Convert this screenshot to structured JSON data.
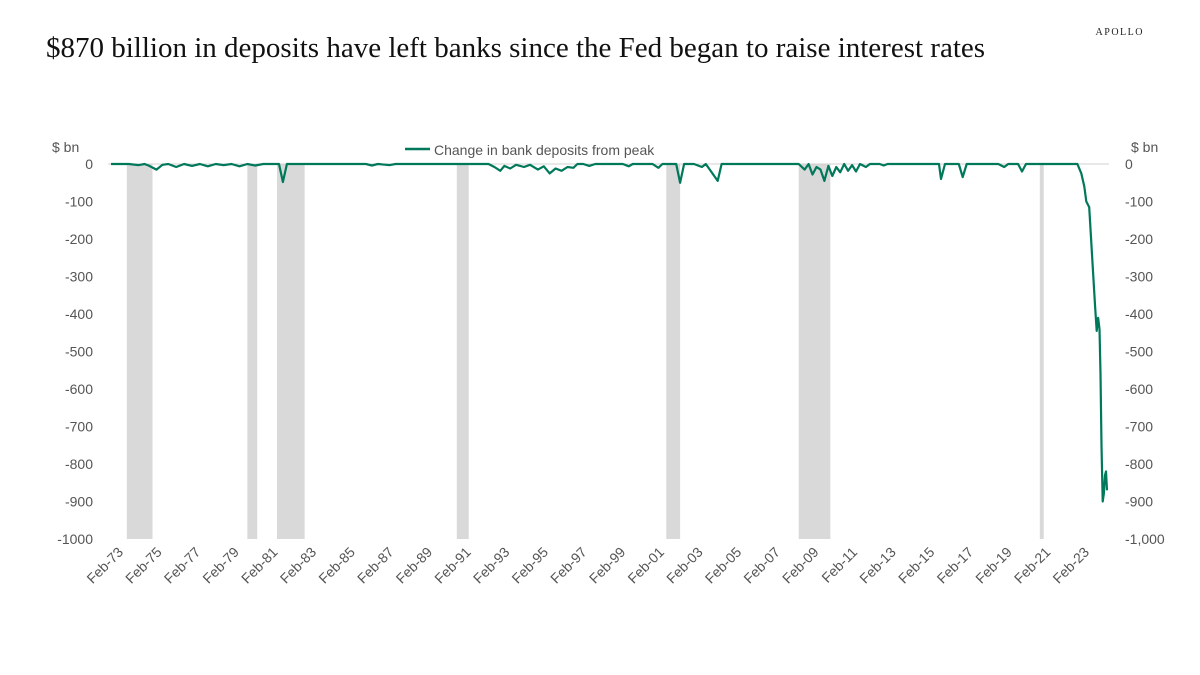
{
  "header": {
    "title": "$870 billion in deposits have left banks since the Fed began to raise interest rates",
    "brand": "APOLLO"
  },
  "chart_data": {
    "type": "line",
    "title": "$870 billion in deposits have left banks since the Fed began to raise interest rates",
    "ylabel_left": "$ bn",
    "ylabel_right": "$ bn",
    "legend_position": "top-center",
    "grid": false,
    "xlim": [
      1973.1,
      2023.5
    ],
    "ylim": [
      -1000,
      0
    ],
    "x_ticks": [
      "Feb-73",
      "Feb-75",
      "Feb-77",
      "Feb-79",
      "Feb-81",
      "Feb-83",
      "Feb-85",
      "Feb-87",
      "Feb-89",
      "Feb-91",
      "Feb-93",
      "Feb-95",
      "Feb-97",
      "Feb-99",
      "Feb-01",
      "Feb-03",
      "Feb-05",
      "Feb-07",
      "Feb-09",
      "Feb-11",
      "Feb-13",
      "Feb-15",
      "Feb-17",
      "Feb-19",
      "Feb-21",
      "Feb-23"
    ],
    "y_ticks_left": [
      "0",
      "-100",
      "-200",
      "-300",
      "-400",
      "-500",
      "-600",
      "-700",
      "-800",
      "-900",
      "-1000"
    ],
    "y_ticks_right": [
      "0",
      "-100",
      "-200",
      "-300",
      "-400",
      "-500",
      "-600",
      "-700",
      "-800",
      "-900",
      "-1,000"
    ],
    "y_tick_values": [
      0,
      -100,
      -200,
      -300,
      -400,
      -500,
      -600,
      -700,
      -800,
      -900,
      -1000
    ],
    "recession_shading": [
      [
        1973.9,
        1975.2
      ],
      [
        1980.0,
        1980.5
      ],
      [
        1981.5,
        1982.9
      ],
      [
        1990.6,
        1991.2
      ],
      [
        2001.2,
        2001.9
      ],
      [
        2007.9,
        2009.5
      ],
      [
        2020.1,
        2020.3
      ]
    ],
    "recession_color": "#d9d9d9",
    "series": [
      {
        "name": "Change in bank deposits from peak",
        "color": "#00785a",
        "points": [
          [
            1973.1,
            0
          ],
          [
            1974.0,
            0
          ],
          [
            1974.5,
            -3
          ],
          [
            1974.8,
            0
          ],
          [
            1975.0,
            -4
          ],
          [
            1975.4,
            -15
          ],
          [
            1975.7,
            -2
          ],
          [
            1976.0,
            0
          ],
          [
            1976.4,
            -8
          ],
          [
            1976.8,
            0
          ],
          [
            1977.2,
            -5
          ],
          [
            1977.6,
            0
          ],
          [
            1978.0,
            -6
          ],
          [
            1978.4,
            0
          ],
          [
            1978.8,
            -3
          ],
          [
            1979.2,
            0
          ],
          [
            1979.6,
            -6
          ],
          [
            1980.0,
            0
          ],
          [
            1980.4,
            -4
          ],
          [
            1980.8,
            0
          ],
          [
            1981.0,
            0
          ],
          [
            1981.6,
            0
          ],
          [
            1981.8,
            -48
          ],
          [
            1982.0,
            0
          ],
          [
            1982.5,
            0
          ],
          [
            1986.0,
            0
          ],
          [
            1986.3,
            -4
          ],
          [
            1986.6,
            0
          ],
          [
            1987.2,
            -3
          ],
          [
            1987.5,
            0
          ],
          [
            1991.5,
            0
          ],
          [
            1992.2,
            0
          ],
          [
            1992.5,
            -8
          ],
          [
            1992.8,
            -18
          ],
          [
            1993.0,
            -5
          ],
          [
            1993.3,
            -12
          ],
          [
            1993.6,
            -2
          ],
          [
            1994.0,
            -8
          ],
          [
            1994.3,
            -2
          ],
          [
            1994.7,
            -15
          ],
          [
            1995.0,
            -6
          ],
          [
            1995.3,
            -25
          ],
          [
            1995.6,
            -12
          ],
          [
            1995.9,
            -18
          ],
          [
            1996.2,
            -8
          ],
          [
            1996.5,
            -10
          ],
          [
            1996.7,
            0
          ],
          [
            1997.0,
            0
          ],
          [
            1997.3,
            -5
          ],
          [
            1997.6,
            0
          ],
          [
            1999.0,
            0
          ],
          [
            1999.3,
            -6
          ],
          [
            1999.5,
            0
          ],
          [
            2000.5,
            0
          ],
          [
            2000.8,
            -10
          ],
          [
            2001.0,
            0
          ],
          [
            2001.7,
            0
          ],
          [
            2001.9,
            -50
          ],
          [
            2002.1,
            0
          ],
          [
            2002.6,
            0
          ],
          [
            2003.0,
            -8
          ],
          [
            2003.2,
            0
          ],
          [
            2003.8,
            -45
          ],
          [
            2004.0,
            0
          ],
          [
            2007.9,
            0
          ],
          [
            2008.2,
            -15
          ],
          [
            2008.4,
            0
          ],
          [
            2008.6,
            -28
          ],
          [
            2008.8,
            -8
          ],
          [
            2009.0,
            -15
          ],
          [
            2009.2,
            -45
          ],
          [
            2009.4,
            -5
          ],
          [
            2009.6,
            -32
          ],
          [
            2009.8,
            -8
          ],
          [
            2010.0,
            -22
          ],
          [
            2010.2,
            0
          ],
          [
            2010.4,
            -18
          ],
          [
            2010.6,
            -3
          ],
          [
            2010.8,
            -20
          ],
          [
            2011.0,
            0
          ],
          [
            2011.3,
            -8
          ],
          [
            2011.5,
            0
          ],
          [
            2012.0,
            0
          ],
          [
            2012.2,
            -4
          ],
          [
            2012.4,
            0
          ],
          [
            2015.0,
            0
          ],
          [
            2015.1,
            -40
          ],
          [
            2015.3,
            0
          ],
          [
            2016.0,
            0
          ],
          [
            2016.2,
            -35
          ],
          [
            2016.4,
            0
          ],
          [
            2018.0,
            0
          ],
          [
            2018.3,
            -8
          ],
          [
            2018.5,
            0
          ],
          [
            2019.0,
            0
          ],
          [
            2019.2,
            -20
          ],
          [
            2019.4,
            0
          ],
          [
            2021.0,
            0
          ],
          [
            2022.0,
            0
          ],
          [
            2022.2,
            -25
          ],
          [
            2022.35,
            -60
          ],
          [
            2022.45,
            -100
          ],
          [
            2022.6,
            -115
          ],
          [
            2022.75,
            -250
          ],
          [
            2022.9,
            -380
          ],
          [
            2022.98,
            -445
          ],
          [
            2023.05,
            -410
          ],
          [
            2023.12,
            -440
          ],
          [
            2023.17,
            -560
          ],
          [
            2023.22,
            -750
          ],
          [
            2023.28,
            -900
          ],
          [
            2023.34,
            -880
          ],
          [
            2023.4,
            -830
          ],
          [
            2023.45,
            -820
          ],
          [
            2023.5,
            -870
          ]
        ]
      }
    ]
  }
}
